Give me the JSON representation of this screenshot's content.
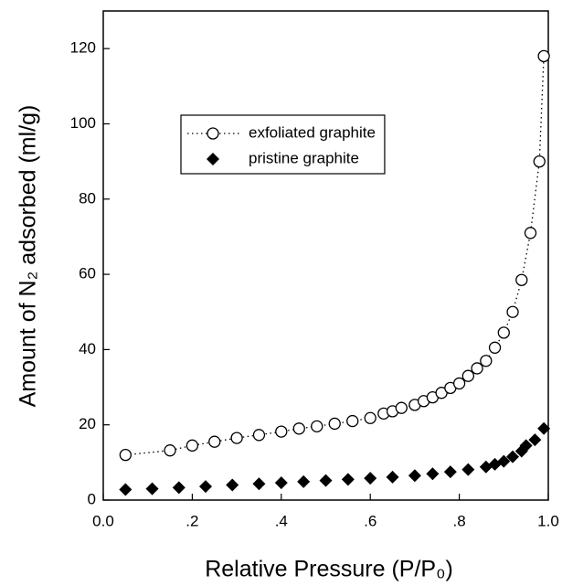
{
  "chart_data": {
    "type": "scatter",
    "xlabel": "Relative Pressure (P/P₀)",
    "ylabel": "Amount of N₂ adsorbed (ml/g)",
    "xlim": [
      0,
      1
    ],
    "ylim": [
      0,
      130
    ],
    "xticks": [
      {
        "value": 0,
        "label": "0.0"
      },
      {
        "value": 0.2,
        "label": ".2"
      },
      {
        "value": 0.4,
        "label": ".4"
      },
      {
        "value": 0.6,
        "label": ".6"
      },
      {
        "value": 0.8,
        "label": ".8"
      },
      {
        "value": 1,
        "label": "1.0"
      }
    ],
    "yticks": [
      0,
      20,
      40,
      60,
      80,
      100,
      120
    ],
    "legend": "upper left",
    "series": [
      {
        "name": "exfoliated graphite",
        "color": "#000000",
        "marker": "open-circle",
        "line": "dotted",
        "x": [
          0.05,
          0.15,
          0.2,
          0.25,
          0.3,
          0.35,
          0.4,
          0.44,
          0.48,
          0.52,
          0.56,
          0.6,
          0.63,
          0.65,
          0.67,
          0.7,
          0.72,
          0.74,
          0.76,
          0.78,
          0.8,
          0.82,
          0.84,
          0.86,
          0.88,
          0.9,
          0.92,
          0.94,
          0.96,
          0.98,
          0.99
        ],
        "values": [
          12,
          13.2,
          14.5,
          15.5,
          16.5,
          17.3,
          18.2,
          19,
          19.6,
          20.3,
          21,
          21.8,
          23,
          23.6,
          24.5,
          25.3,
          26.3,
          27.3,
          28.5,
          29.8,
          31,
          33,
          35,
          37,
          40.5,
          44.5,
          50,
          58.5,
          71,
          90,
          118
        ]
      },
      {
        "name": "pristine graphite",
        "color": "#000000",
        "marker": "filled-diamond",
        "line": "none",
        "x": [
          0.05,
          0.11,
          0.17,
          0.23,
          0.29,
          0.35,
          0.4,
          0.45,
          0.5,
          0.55,
          0.6,
          0.65,
          0.7,
          0.74,
          0.78,
          0.82,
          0.86,
          0.88,
          0.9,
          0.92,
          0.94,
          0.95,
          0.97,
          0.99
        ],
        "values": [
          2.8,
          3,
          3.3,
          3.6,
          4,
          4.3,
          4.6,
          4.9,
          5.2,
          5.5,
          5.8,
          6.1,
          6.5,
          7,
          7.5,
          8.1,
          8.8,
          9.5,
          10.3,
          11.5,
          13,
          14.5,
          16,
          19
        ]
      }
    ]
  }
}
